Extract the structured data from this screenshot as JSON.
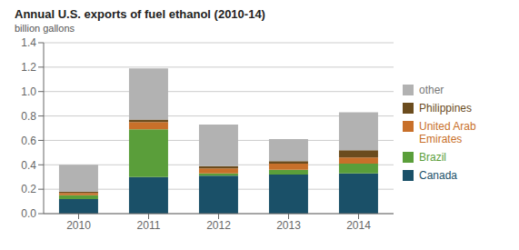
{
  "chart_data": {
    "type": "bar",
    "title": "Annual U.S. exports of fuel ethanol (2010-14)",
    "subtitle": "billion gallons",
    "categories": [
      "2010",
      "2011",
      "2012",
      "2013",
      "2014"
    ],
    "series": [
      {
        "name": "Canada",
        "color": "#1a5068",
        "values": [
          0.12,
          0.3,
          0.31,
          0.32,
          0.33
        ]
      },
      {
        "name": "Brazil",
        "color": "#5a9e3a",
        "values": [
          0.03,
          0.39,
          0.02,
          0.04,
          0.08
        ]
      },
      {
        "name": "United Arab Emirates",
        "color": "#c8702a",
        "values": [
          0.02,
          0.06,
          0.04,
          0.05,
          0.05
        ]
      },
      {
        "name": "Philippines",
        "color": "#6b4c1e",
        "values": [
          0.01,
          0.02,
          0.02,
          0.02,
          0.06
        ]
      },
      {
        "name": "other",
        "color": "#b2b2b2",
        "values": [
          0.22,
          0.42,
          0.34,
          0.18,
          0.31
        ]
      }
    ],
    "ylim": [
      0,
      1.4
    ],
    "yticks": [
      {
        "value": 0,
        "label": "0.0"
      },
      0.2,
      0.4,
      0.6,
      0.8,
      {
        "value": 1,
        "label": "1.0"
      },
      1.2,
      1.4
    ],
    "grid": true,
    "stacked": true,
    "legend": "right"
  }
}
